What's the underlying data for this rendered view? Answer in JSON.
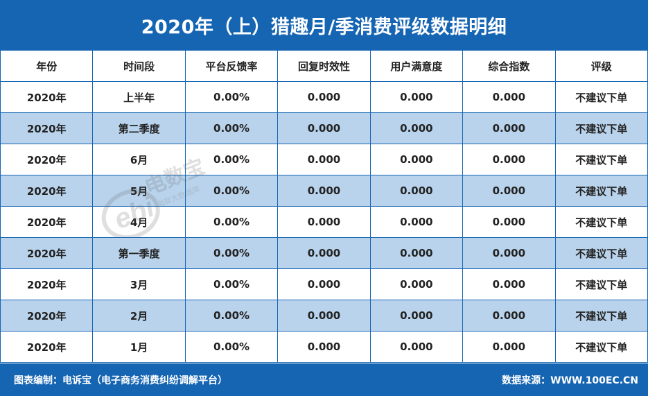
{
  "title": "2020年（上）猎趣月/季消费评级数据明细",
  "columns": [
    "年份",
    "时间段",
    "平台反馈率",
    "回复时效性",
    "用户满意度",
    "综合指数",
    "评级"
  ],
  "rows": [
    [
      "2020年",
      "上半年",
      "0.00%",
      "0.000",
      "0.000",
      "0.000",
      "不建议下单"
    ],
    [
      "2020年",
      "第二季度",
      "0.00%",
      "0.000",
      "0.000",
      "0.000",
      "不建议下单"
    ],
    [
      "2020年",
      "6月",
      "0.00%",
      "0.000",
      "0.000",
      "0.000",
      "不建议下单"
    ],
    [
      "2020年",
      "5月",
      "0.00%",
      "0.000",
      "0.000",
      "0.000",
      "不建议下单"
    ],
    [
      "2020年",
      "4月",
      "0.00%",
      "0.000",
      "0.000",
      "0.000",
      "不建议下单"
    ],
    [
      "2020年",
      "第一季度",
      "0.00%",
      "0.000",
      "0.000",
      "0.000",
      "不建议下单"
    ],
    [
      "2020年",
      "3月",
      "0.00%",
      "0.000",
      "0.000",
      "0.000",
      "不建议下单"
    ],
    [
      "2020年",
      "2月",
      "0.00%",
      "0.000",
      "0.000",
      "0.000",
      "不建议下单"
    ],
    [
      "2020年",
      "1月",
      "0.00%",
      "0.000",
      "0.000",
      "0.000",
      "不建议下单"
    ]
  ],
  "footer": {
    "left": "图表编制：电诉宝（电子商务消费纠纷调解平台）",
    "right": "数据来源：WWW.100EC.CN"
  },
  "watermark": {
    "logo_text": "ebi",
    "name": "电数宝",
    "tagline": "电商大数据库"
  },
  "colors": {
    "header_bg": "#1565b3",
    "row_alt_bg": "#b9d3ec",
    "border": "#1565b3"
  }
}
